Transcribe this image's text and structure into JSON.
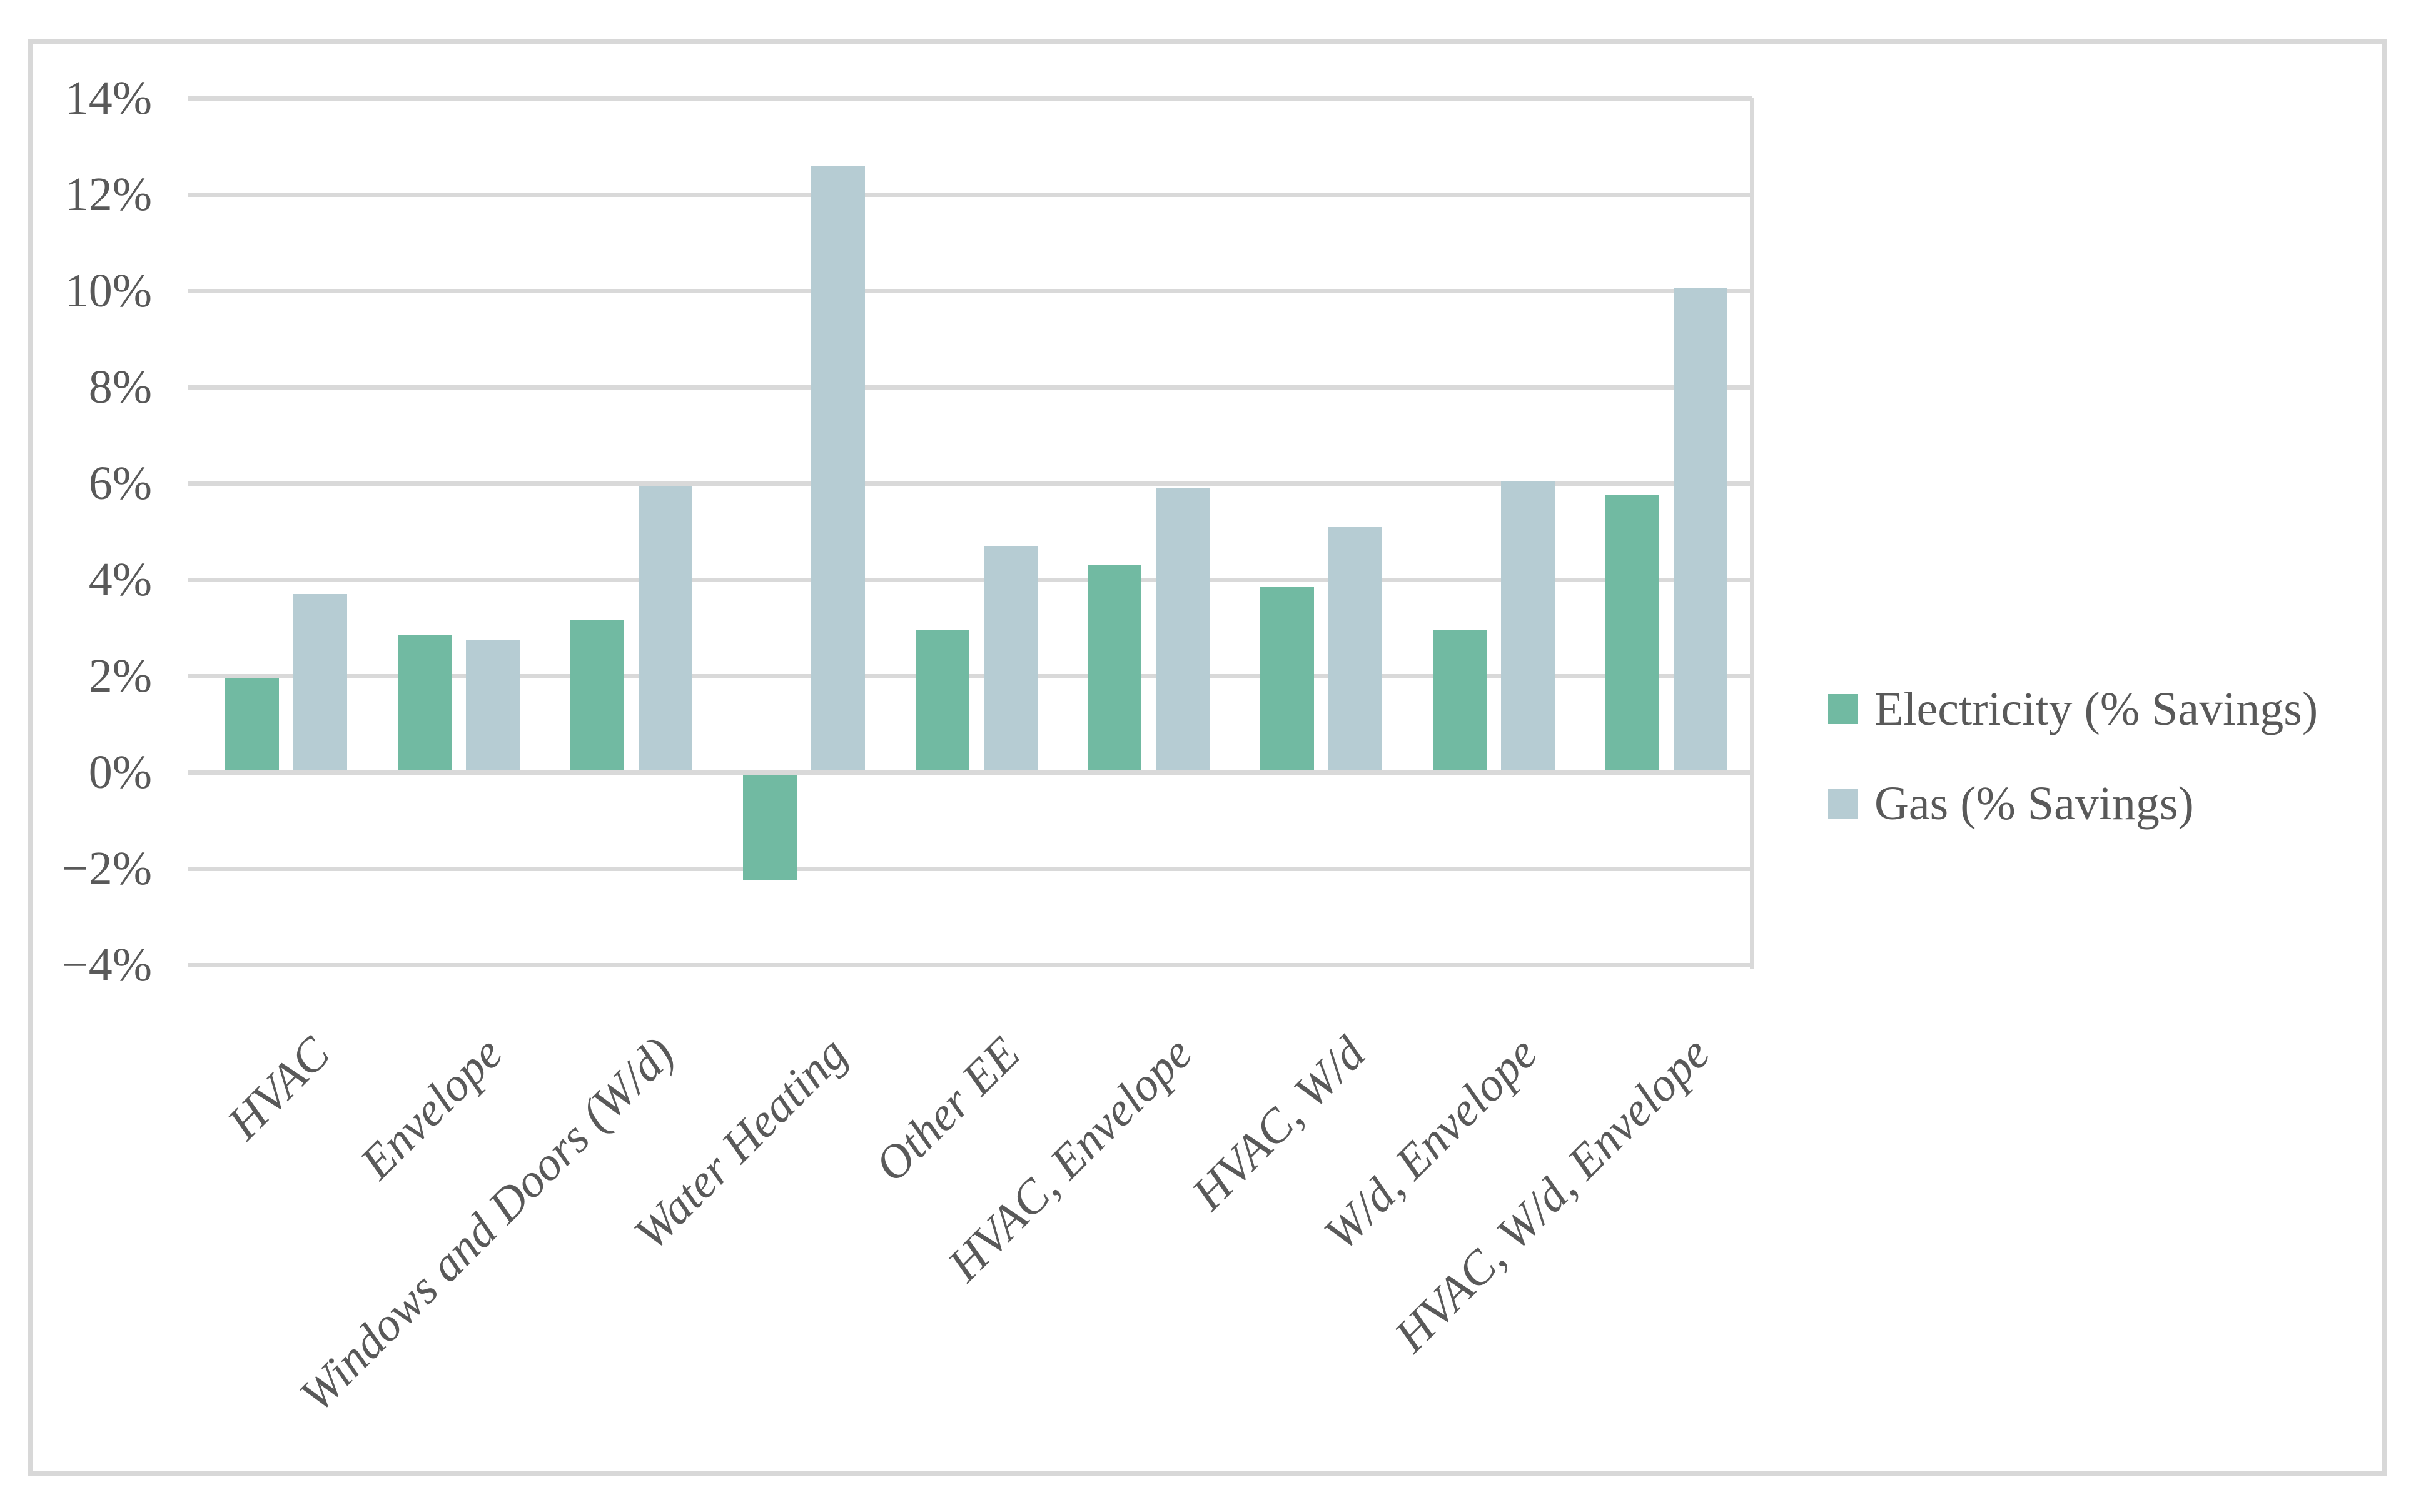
{
  "chart_data": {
    "type": "bar",
    "title": "",
    "categories": [
      "HVAC",
      "Envelope",
      "Windows and Doors (W/d)",
      "Water Heating",
      "Other EE",
      "HVAC, Envelope",
      "HVAC, W/d",
      "W/d, Envelope",
      "HVAC, W/d, Envelope"
    ],
    "series": [
      {
        "name": "Electricity (% Savings)",
        "color": "#71BAA2",
        "values": [
          1.9,
          2.8,
          3.1,
          -2.2,
          2.9,
          4.25,
          3.8,
          2.9,
          5.7
        ]
      },
      {
        "name": "Gas (% Savings)",
        "color": "#B6CCD3",
        "values": [
          3.65,
          2.7,
          5.9,
          12.55,
          4.65,
          5.85,
          5.05,
          6.0,
          10.0
        ]
      }
    ],
    "xlabel": "",
    "ylabel": "",
    "y_axis": {
      "min": -4,
      "max": 14,
      "step": 2,
      "unit": "%",
      "tick_labels": [
        "14%",
        "12%",
        "10%",
        "8%",
        "6%",
        "4%",
        "2%",
        "0%",
        "−2%",
        "−4%"
      ]
    },
    "grid": true,
    "legend_position": "right"
  },
  "colors": {
    "gridline": "#D9D9D9",
    "frame_border": "#D8D8D8",
    "text": "#595959",
    "background": "#FFFFFF"
  }
}
